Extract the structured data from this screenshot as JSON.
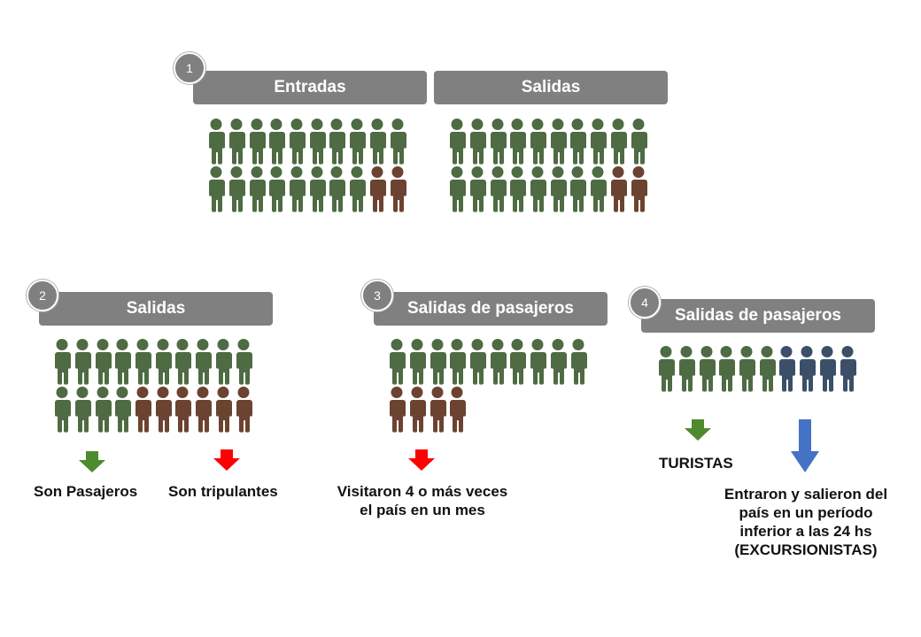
{
  "colors": {
    "bar": "#808080",
    "passenger": "#4e6b43",
    "crew": "#6b4330",
    "excursionist": "#3b5068",
    "arrow_green": "#4e8a2e",
    "arrow_red": "#ff0000",
    "arrow_blue": "#4472c4"
  },
  "panels": [
    {
      "number": "1",
      "groups": [
        {
          "title": "Entradas",
          "rows": [
            [
              "p",
              "p",
              "p",
              "p",
              "p",
              "p",
              "p",
              "p",
              "p",
              "p"
            ],
            [
              "p",
              "p",
              "p",
              "p",
              "p",
              "p",
              "p",
              "p",
              "c",
              "c"
            ]
          ]
        },
        {
          "title": "Salidas",
          "rows": [
            [
              "p",
              "p",
              "p",
              "p",
              "p",
              "p",
              "p",
              "p",
              "p",
              "p"
            ],
            [
              "p",
              "p",
              "p",
              "p",
              "p",
              "p",
              "p",
              "p",
              "c",
              "c"
            ]
          ]
        }
      ]
    },
    {
      "number": "2",
      "title": "Salidas",
      "rows": [
        [
          "p",
          "p",
          "p",
          "p",
          "p",
          "p",
          "p",
          "p",
          "p",
          "p"
        ],
        [
          "p",
          "p",
          "p",
          "p",
          "c",
          "c",
          "c",
          "c",
          "c",
          "c"
        ]
      ],
      "labels": [
        "Son Pasajeros",
        "Son tripulantes"
      ]
    },
    {
      "number": "3",
      "title": "Salidas de pasajeros",
      "rows": [
        [
          "p",
          "p",
          "p",
          "p",
          "p",
          "p",
          "p",
          "p",
          "p",
          "p"
        ],
        [
          "c",
          "c",
          "c",
          "c"
        ]
      ],
      "labels": [
        "Visitaron 4 o más veces",
        "el país en un mes"
      ]
    },
    {
      "number": "4",
      "title": "Salidas de pasajeros",
      "rows": [
        [
          "p",
          "p",
          "p",
          "p",
          "p",
          "p",
          "e",
          "e",
          "e",
          "e"
        ]
      ],
      "labels": [
        "TURISTAS",
        "Entraron y salieron del",
        "país en un período",
        "inferior a las 24 hs",
        "(EXCURSIONISTAS)"
      ]
    }
  ]
}
